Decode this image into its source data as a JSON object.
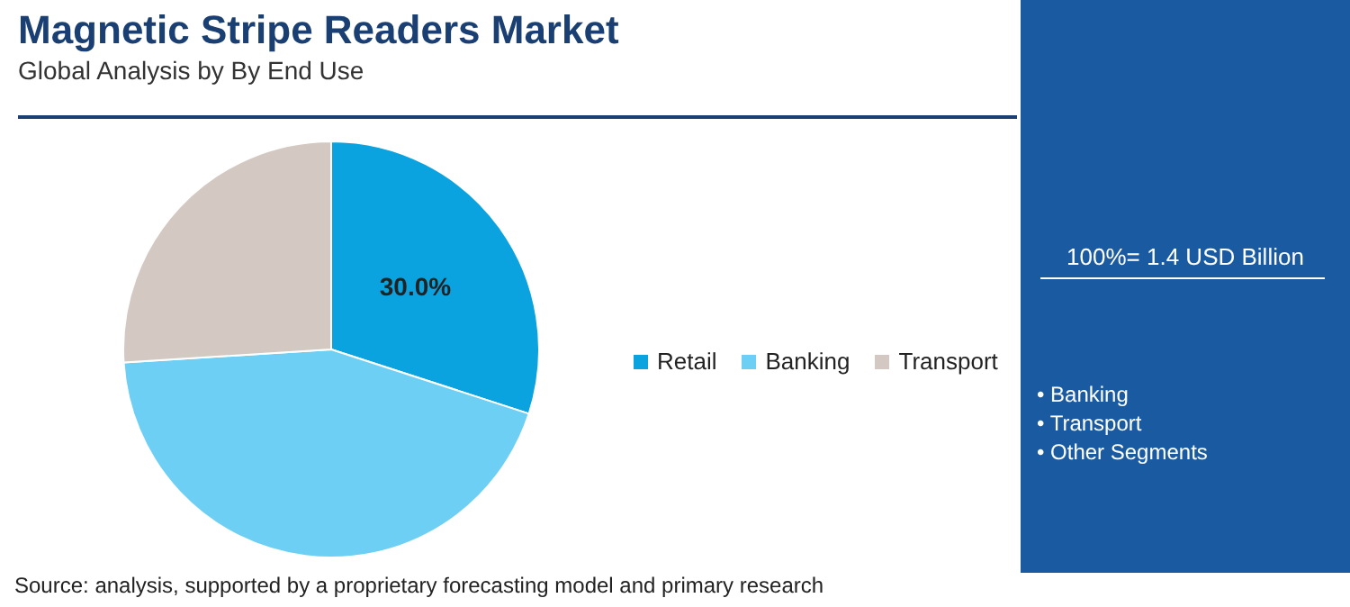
{
  "chart_data": {
    "type": "pie",
    "title": "Magnetic Stripe Readers Market",
    "subtitle": "Global Analysis by By End Use",
    "categories": [
      "Retail",
      "Banking",
      "Transport"
    ],
    "values": [
      30,
      44,
      26
    ],
    "colors": [
      "#0aa3df",
      "#6ccff3",
      "#d3c8c2"
    ],
    "value_labels": [
      "30.0%",
      null,
      null
    ],
    "legend": "right",
    "annotations": [
      "100%= 1.4 USD Billion",
      "• Banking",
      "• Transport",
      "• Other Segments",
      "Source: analysis, supported by a proprietary forecasting model and primary research"
    ]
  }
}
